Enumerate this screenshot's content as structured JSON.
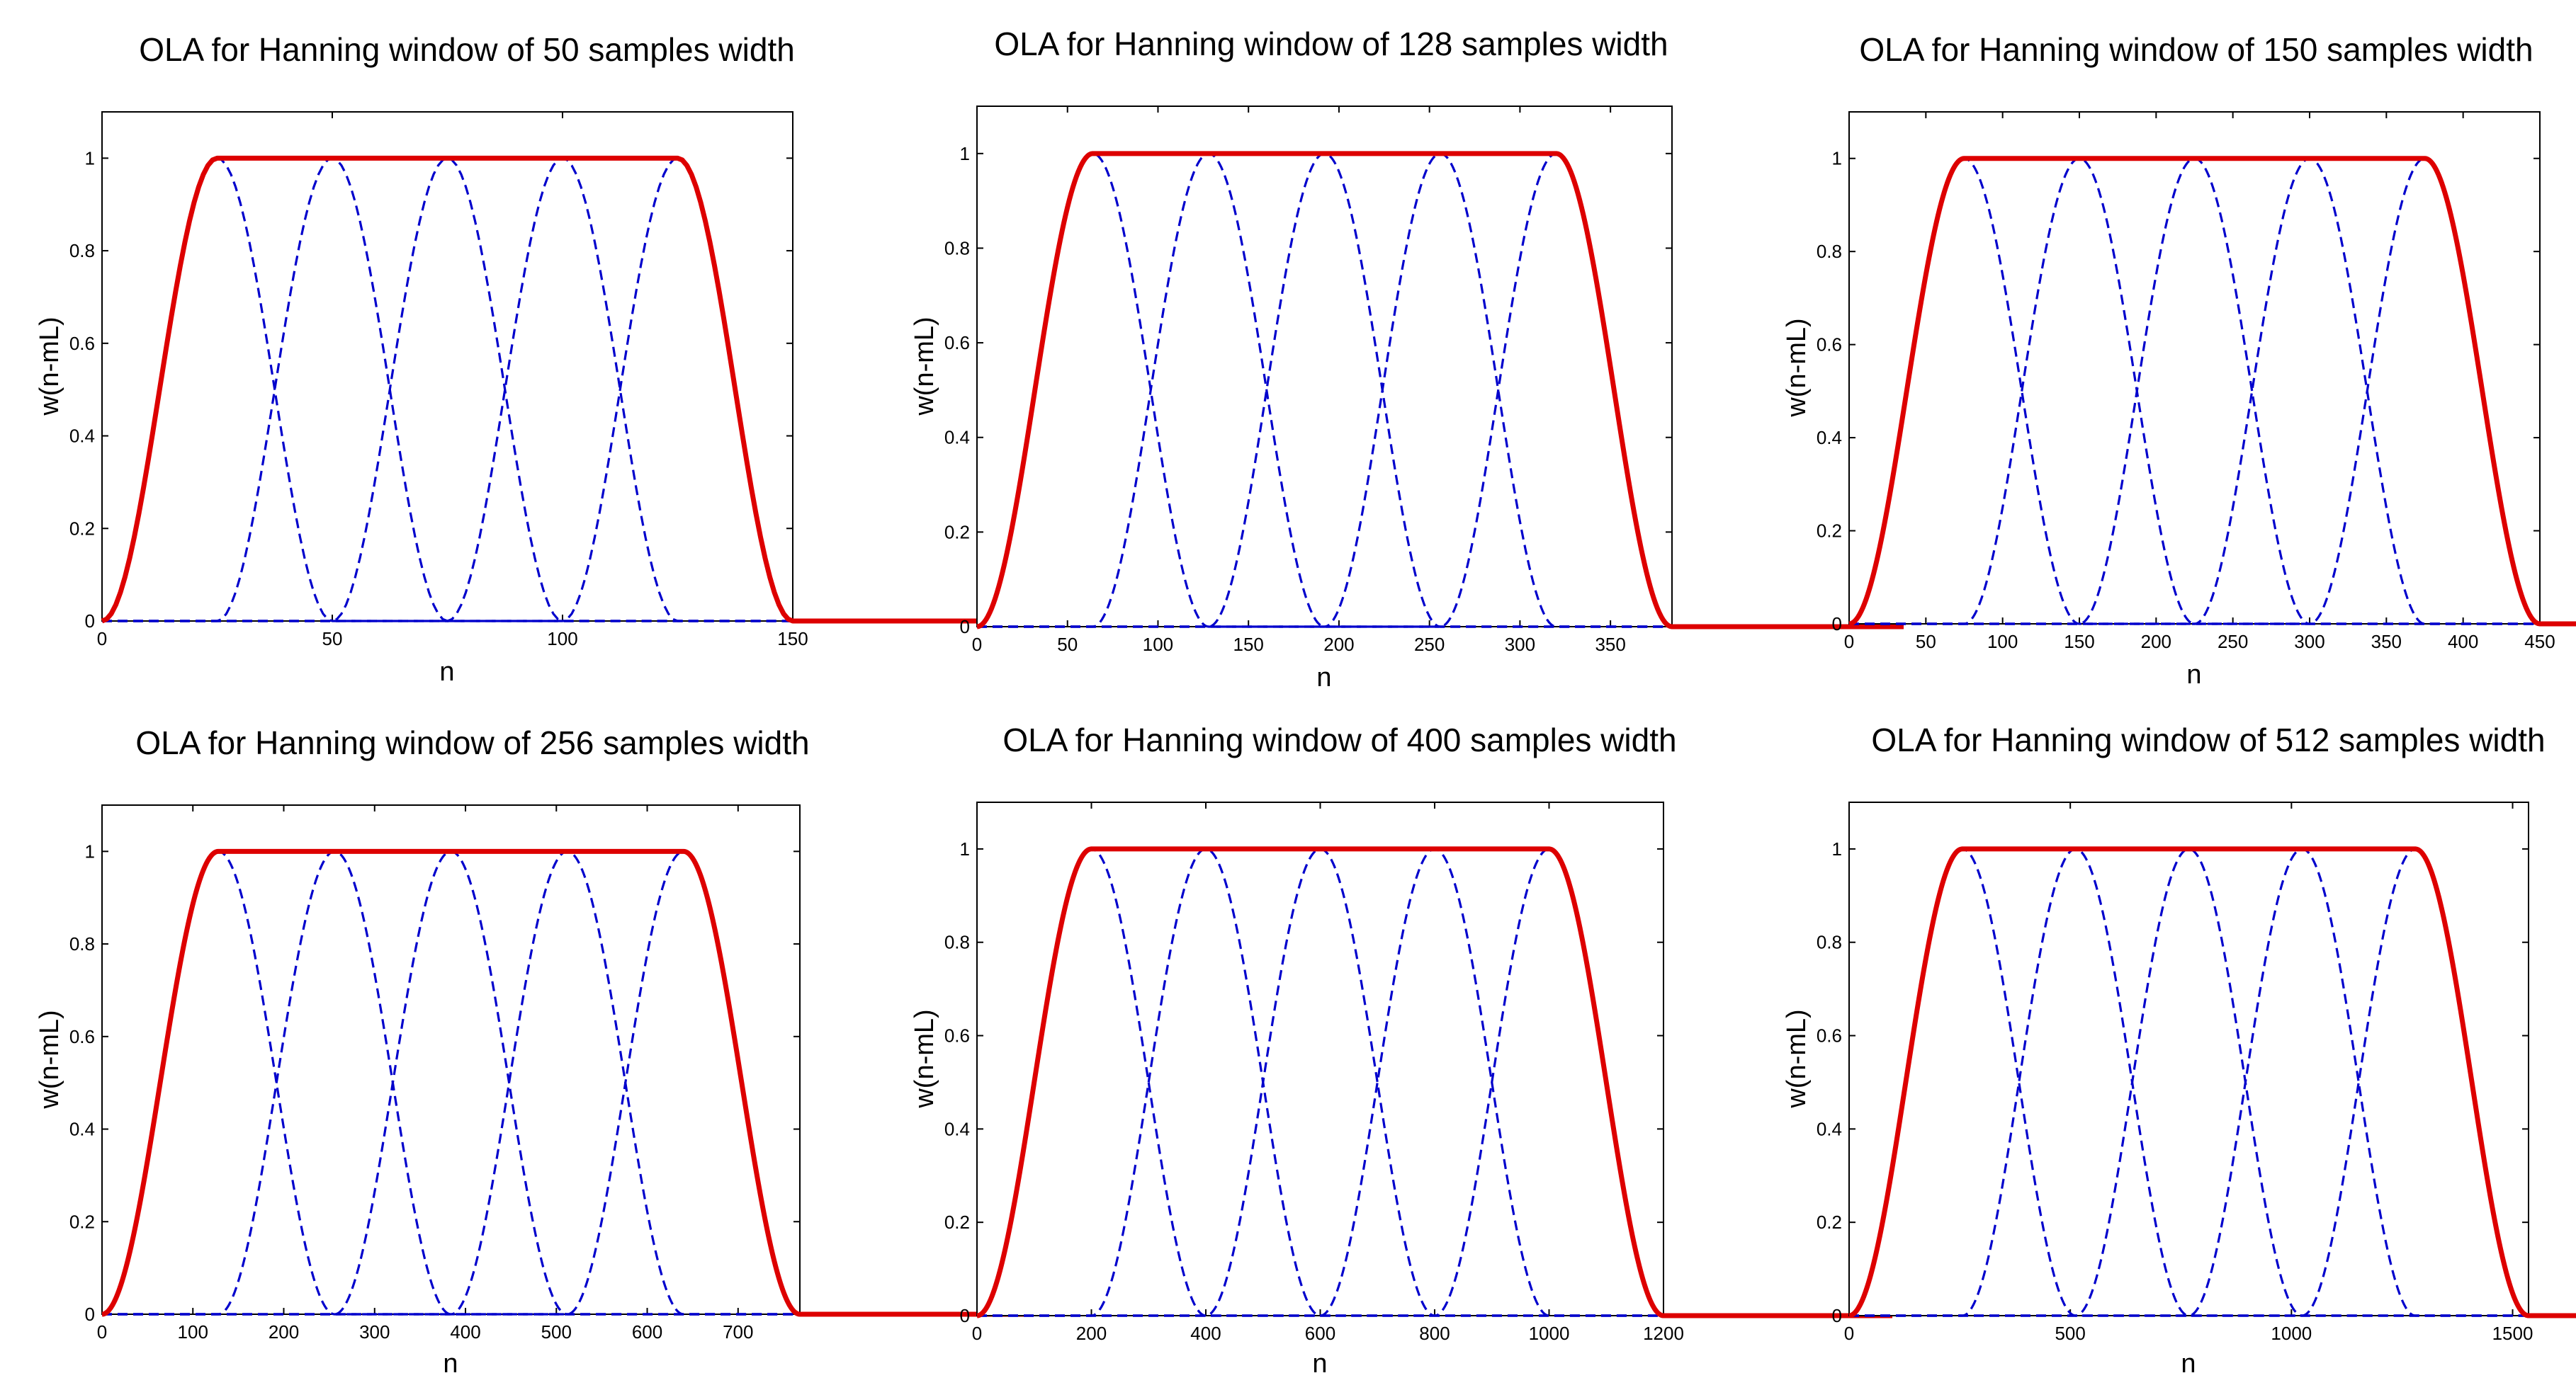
{
  "chart_data": [
    {
      "type": "line",
      "title": "OLA for Hanning window of 50 samples width",
      "xlabel": "n",
      "ylabel": "w(n-mL)",
      "window_length": 50,
      "hop": 25,
      "num_windows": 5,
      "xlim": [
        0,
        150
      ],
      "ylim": [
        0,
        1.1
      ],
      "xticks": [
        0,
        50,
        100,
        150
      ],
      "yticks": [
        0,
        0.2,
        0.4,
        0.6,
        0.8,
        1
      ],
      "window_centers": [
        25,
        50,
        75,
        100,
        125
      ],
      "series": [
        {
          "name": "shifted Hanning windows w(n-mL)",
          "style": "dashed",
          "color": "#0000cc"
        },
        {
          "name": "overlap-add sum",
          "style": "solid",
          "color": "#dd0000",
          "plateau_value": 1
        }
      ]
    },
    {
      "type": "line",
      "title": "OLA for Hanning window of 128 samples width",
      "xlabel": "n",
      "ylabel": "w(n-mL)",
      "window_length": 128,
      "hop": 64,
      "num_windows": 5,
      "xlim": [
        0,
        384
      ],
      "ylim": [
        0,
        1.1
      ],
      "xticks": [
        0,
        50,
        100,
        150,
        200,
        250,
        300,
        350
      ],
      "yticks": [
        0,
        0.2,
        0.4,
        0.6,
        0.8,
        1
      ],
      "window_centers": [
        64,
        128,
        192,
        256,
        320
      ],
      "series": [
        {
          "name": "shifted Hanning windows w(n-mL)",
          "style": "dashed",
          "color": "#0000cc"
        },
        {
          "name": "overlap-add sum",
          "style": "solid",
          "color": "#dd0000",
          "plateau_value": 1
        }
      ]
    },
    {
      "type": "line",
      "title": "OLA for Hanning window of 150 samples width",
      "xlabel": "n",
      "ylabel": "w(n-mL)",
      "window_length": 150,
      "hop": 75,
      "num_windows": 5,
      "xlim": [
        0,
        450
      ],
      "ylim": [
        0,
        1.1
      ],
      "xticks": [
        0,
        50,
        100,
        150,
        200,
        250,
        300,
        350,
        400,
        450
      ],
      "yticks": [
        0,
        0.2,
        0.4,
        0.6,
        0.8,
        1
      ],
      "window_centers": [
        75,
        150,
        225,
        300,
        375
      ],
      "series": [
        {
          "name": "shifted Hanning windows w(n-mL)",
          "style": "dashed",
          "color": "#0000cc"
        },
        {
          "name": "overlap-add sum",
          "style": "solid",
          "color": "#dd0000",
          "plateau_value": 1
        }
      ]
    },
    {
      "type": "line",
      "title": "OLA for Hanning window of 256 samples width",
      "xlabel": "n",
      "ylabel": "w(n-mL)",
      "window_length": 256,
      "hop": 128,
      "num_windows": 5,
      "xlim": [
        0,
        768
      ],
      "ylim": [
        0,
        1.1
      ],
      "xticks": [
        0,
        100,
        200,
        300,
        400,
        500,
        600,
        700
      ],
      "yticks": [
        0,
        0.2,
        0.4,
        0.6,
        0.8,
        1
      ],
      "window_centers": [
        128,
        256,
        384,
        512,
        640
      ],
      "series": [
        {
          "name": "shifted Hanning windows w(n-mL)",
          "style": "dashed",
          "color": "#0000cc"
        },
        {
          "name": "overlap-add sum",
          "style": "solid",
          "color": "#dd0000",
          "plateau_value": 1
        }
      ]
    },
    {
      "type": "line",
      "title": "OLA for Hanning window of 400 samples width",
      "xlabel": "n",
      "ylabel": "w(n-mL)",
      "window_length": 400,
      "hop": 200,
      "num_windows": 5,
      "xlim": [
        0,
        1200
      ],
      "ylim": [
        0,
        1.1
      ],
      "xticks": [
        0,
        200,
        400,
        600,
        800,
        1000,
        1200
      ],
      "yticks": [
        0,
        0.2,
        0.4,
        0.6,
        0.8,
        1
      ],
      "window_centers": [
        200,
        400,
        600,
        800,
        1000
      ],
      "series": [
        {
          "name": "shifted Hanning windows w(n-mL)",
          "style": "dashed",
          "color": "#0000cc"
        },
        {
          "name": "overlap-add sum",
          "style": "solid",
          "color": "#dd0000",
          "plateau_value": 1
        }
      ]
    },
    {
      "type": "line",
      "title": "OLA for Hanning window of 512 samples width",
      "xlabel": "n",
      "ylabel": "w(n-mL)",
      "window_length": 512,
      "hop": 256,
      "num_windows": 5,
      "xlim": [
        0,
        1536
      ],
      "ylim": [
        0,
        1.1
      ],
      "xticks": [
        0,
        500,
        1000,
        1500
      ],
      "yticks": [
        0,
        0.2,
        0.4,
        0.6,
        0.8,
        1
      ],
      "window_centers": [
        256,
        512,
        768,
        1024,
        1280
      ],
      "series": [
        {
          "name": "shifted Hanning windows w(n-mL)",
          "style": "dashed",
          "color": "#0000cc"
        },
        {
          "name": "overlap-add sum",
          "style": "solid",
          "color": "#dd0000",
          "plateau_value": 1
        }
      ]
    }
  ]
}
